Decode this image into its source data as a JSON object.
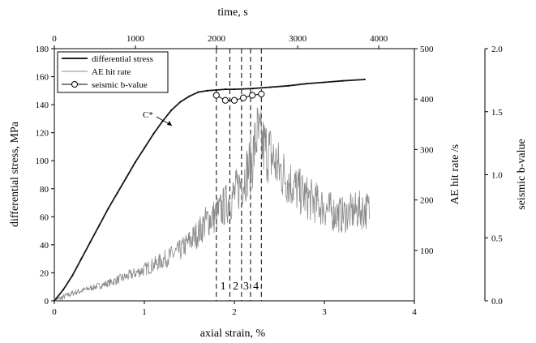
{
  "chart_data": {
    "type": "line",
    "xlabel": "axial strain, %",
    "x_top_label": "time, s",
    "ylabel_left": "differential stress, MPa",
    "ylabel_right1": "AE hit rate /s",
    "ylabel_right2": "seismic b-value",
    "xlim": [
      0,
      4
    ],
    "x_top_lim": [
      0,
      4439
    ],
    "ylim_left": [
      0,
      180
    ],
    "ylim_right1": [
      0,
      500
    ],
    "ylim_right2": [
      0,
      2.0
    ],
    "x_ticks": [
      "0",
      "1",
      "2",
      "3",
      "4"
    ],
    "x_top_ticks": [
      "0",
      "1000",
      "2000",
      "3000",
      "4000"
    ],
    "y_left_ticks": [
      "0",
      "20",
      "40",
      "60",
      "80",
      "100",
      "120",
      "140",
      "160",
      "180"
    ],
    "y_right1_ticks": [
      "100",
      "200",
      "300",
      "400",
      "500"
    ],
    "y_right2_ticks": [
      "0.0",
      "0.5",
      "1.0",
      "1.5",
      "2.0"
    ],
    "legend": [
      "differential stress",
      "AE hit rate",
      "seismic b-value"
    ],
    "annotation": "C*",
    "vertical_lines": {
      "x": [
        1.8,
        1.95,
        2.08,
        2.18,
        2.3
      ],
      "labels": [
        "1",
        "2",
        "3",
        "4"
      ]
    },
    "series": [
      {
        "name": "differential stress",
        "axis": "left",
        "x": [
          0,
          0.1,
          0.2,
          0.3,
          0.4,
          0.5,
          0.6,
          0.7,
          0.8,
          0.9,
          1.0,
          1.1,
          1.2,
          1.3,
          1.4,
          1.5,
          1.6,
          1.7,
          1.8,
          1.9,
          2.0,
          2.2,
          2.4,
          2.6,
          2.8,
          3.0,
          3.2,
          3.45
        ],
        "y": [
          0,
          8,
          18,
          30,
          42,
          54,
          66,
          77,
          88,
          99,
          109,
          119,
          128,
          136,
          142,
          146,
          149,
          150,
          150.5,
          151,
          151,
          151.5,
          152.5,
          153.5,
          155,
          156,
          157,
          158
        ]
      },
      {
        "name": "AE hit rate",
        "axis": "right1",
        "x": [
          0,
          0.2,
          0.4,
          0.6,
          0.8,
          1.0,
          1.2,
          1.4,
          1.6,
          1.7,
          1.8,
          1.9,
          2.0,
          2.1,
          2.2,
          2.25,
          2.3,
          2.4,
          2.5,
          2.6,
          2.7,
          2.8,
          2.9,
          3.0,
          3.1,
          3.2,
          3.3,
          3.4,
          3.5
        ],
        "y": [
          0,
          15,
          25,
          35,
          48,
          62,
          80,
          100,
          135,
          160,
          170,
          190,
          210,
          240,
          280,
          330,
          310,
          290,
          260,
          240,
          220,
          205,
          195,
          185,
          175,
          170,
          175,
          180,
          180
        ]
      },
      {
        "name": "seismic b-value",
        "axis": "right2",
        "x": [
          1.8,
          1.9,
          2.0,
          2.1,
          2.2,
          2.3
        ],
        "y": [
          1.63,
          1.59,
          1.59,
          1.61,
          1.63,
          1.64
        ]
      }
    ]
  }
}
